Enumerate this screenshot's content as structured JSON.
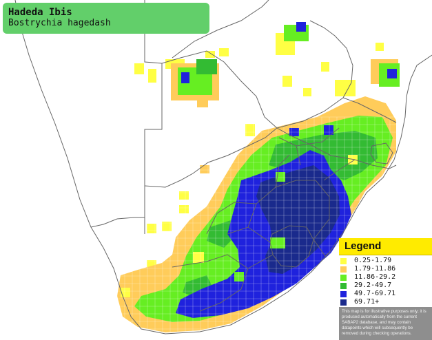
{
  "species": {
    "common_name": "Hadeda Ibis",
    "scientific_name": "Bostrychia hagedash"
  },
  "legend": {
    "title": "Legend",
    "classes": [
      {
        "label": "0.25-1.79",
        "color": "#ffff44"
      },
      {
        "label": "1.79-11.86",
        "color": "#ffcc5a"
      },
      {
        "label": "11.86-29.2",
        "color": "#66ee22"
      },
      {
        "label": "29.2-49.7",
        "color": "#33bb33"
      },
      {
        "label": "49.7-69.71",
        "color": "#1f22dd"
      },
      {
        "label": "69.71+",
        "color": "#1a2a8c"
      }
    ],
    "disclaimer": "This map is for illustrative purposes only; it is produced automatically from the current SABAP2 database, and may contain datapoints which will subsequently be removed during checking operations."
  },
  "colors": {
    "border": "#666666",
    "title_box": "#62cf6a",
    "legend_header": "#ffeb00",
    "disclaimer_bg": "#8e8e8e"
  }
}
